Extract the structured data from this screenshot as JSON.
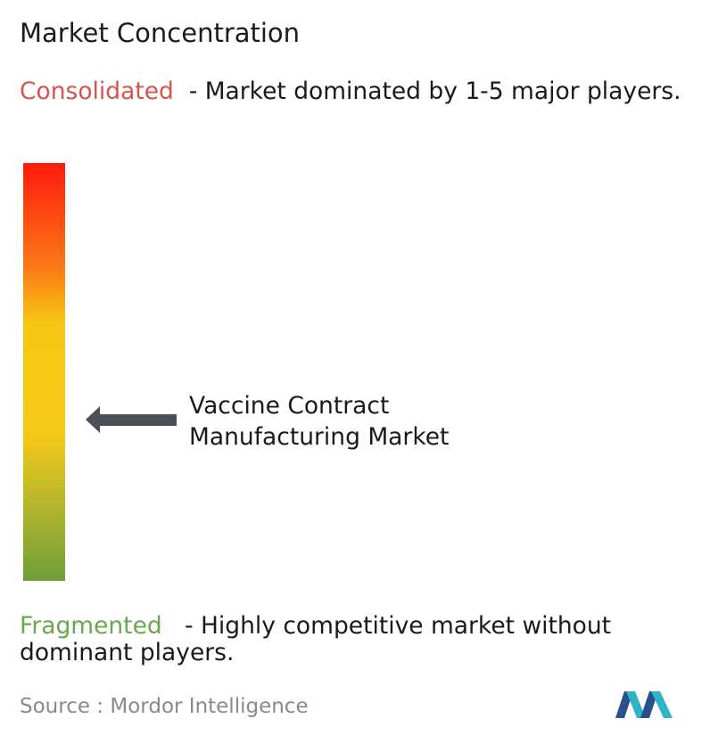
{
  "title": "Market Concentration",
  "top": {
    "label": "Consolidated",
    "description": "- Market dominated by 1-5 major players."
  },
  "marker": {
    "label": "Vaccine Contract Manufacturing Market"
  },
  "bottom": {
    "label": "Fragmented",
    "description": "- Highly competitive market without dominant players."
  },
  "source": {
    "label": "Source :",
    "name": "Mordor Intelligence"
  }
}
